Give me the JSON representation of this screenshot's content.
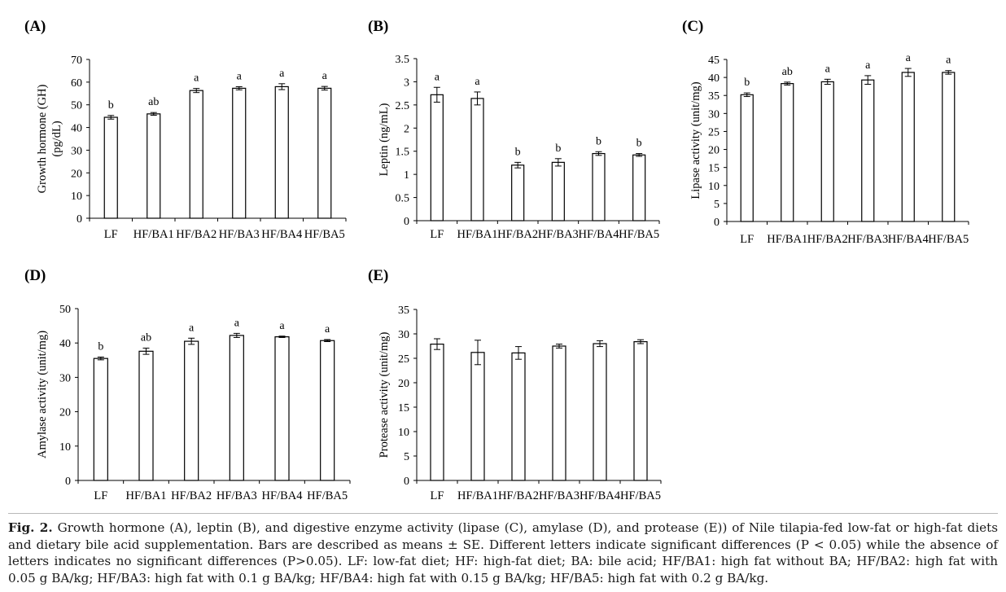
{
  "chart_data": [
    {
      "panel": "(A)",
      "type": "bar",
      "ylabel": "Growth hormone (GH) (pg/dL)",
      "ylabel_lines": [
        "Growth hormone (GH)",
        "(pg/dL)"
      ],
      "categories": [
        "LF",
        "HF/BA1",
        "HF/BA2",
        "HF/BA3",
        "HF/BA4",
        "HF/BA5"
      ],
      "values": [
        44.5,
        46,
        56.3,
        57.3,
        58,
        57.3
      ],
      "errors": [
        0.8,
        0.6,
        0.9,
        0.7,
        1.3,
        0.8
      ],
      "letters": [
        "b",
        "ab",
        "a",
        "a",
        "a",
        "a"
      ],
      "ylim": [
        0,
        70
      ],
      "yticks": [
        0,
        10,
        20,
        30,
        40,
        50,
        60,
        70
      ],
      "ytick_labels": [
        "0",
        "10",
        "20",
        "30",
        "40",
        "50",
        "60",
        "70"
      ],
      "grid": false
    },
    {
      "panel": "(B)",
      "type": "bar",
      "ylabel": "Leptin (ng/mL)",
      "ylabel_lines": [
        "Leptin (ng/mL)"
      ],
      "categories": [
        "LF",
        "HF/BA1",
        "HF/BA2",
        "HF/BA3",
        "HF/BA4",
        "HF/BA5"
      ],
      "values": [
        2.72,
        2.64,
        1.2,
        1.26,
        1.45,
        1.42
      ],
      "errors": [
        0.16,
        0.14,
        0.06,
        0.08,
        0.04,
        0.03
      ],
      "letters": [
        "a",
        "a",
        "b",
        "b",
        "b",
        "b"
      ],
      "ylim": [
        0,
        3.5
      ],
      "yticks": [
        0,
        0.5,
        1,
        1.5,
        2,
        2.5,
        3,
        3.5
      ],
      "ytick_labels": [
        "0",
        "0.5",
        "1",
        "1.5",
        "2",
        "2.5",
        "3",
        "3.5"
      ],
      "grid": false
    },
    {
      "panel": "(C)",
      "type": "bar",
      "ylabel": "Lipase activity (unit/mg)",
      "ylabel_lines": [
        "Lipase activity (unit/mg)"
      ],
      "categories": [
        "LF",
        "HF/BA1",
        "HF/BA2",
        "HF/BA3",
        "HF/BA4",
        "HF/BA5"
      ],
      "values": [
        35.2,
        38.3,
        38.8,
        39.3,
        41.4,
        41.4
      ],
      "errors": [
        0.5,
        0.4,
        0.7,
        1.2,
        1.1,
        0.5
      ],
      "letters": [
        "b",
        "ab",
        "a",
        "a",
        "a",
        "a"
      ],
      "ylim": [
        0,
        45
      ],
      "yticks": [
        0,
        5,
        10,
        15,
        20,
        25,
        30,
        35,
        40,
        45
      ],
      "ytick_labels": [
        "0",
        "5",
        "10",
        "15",
        "20",
        "25",
        "30",
        "35",
        "40",
        "45"
      ],
      "grid": false
    },
    {
      "panel": "(D)",
      "type": "bar",
      "ylabel": "Amylase activity (unit/mg)",
      "ylabel_lines": [
        "Amylase activity (unit/mg)"
      ],
      "categories": [
        "LF",
        "HF/BA1",
        "HF/BA2",
        "HF/BA3",
        "HF/BA4",
        "HF/BA5"
      ],
      "values": [
        35.5,
        37.6,
        40.5,
        42.2,
        41.8,
        40.7
      ],
      "errors": [
        0.4,
        0.9,
        0.9,
        0.6,
        0.2,
        0.3
      ],
      "letters": [
        "b",
        "ab",
        "a",
        "a",
        "a",
        "a"
      ],
      "ylim": [
        0,
        50
      ],
      "yticks": [
        0,
        10,
        20,
        30,
        40,
        50
      ],
      "ytick_labels": [
        "0",
        "10",
        "20",
        "30",
        "40",
        "50"
      ],
      "grid": false
    },
    {
      "panel": "(E)",
      "type": "bar",
      "ylabel": "Protease activity (unit/mg)",
      "ylabel_lines": [
        "Protease activity (unit/mg)"
      ],
      "categories": [
        "LF",
        "HF/BA1",
        "HF/BA2",
        "HF/BA3",
        "HF/BA4",
        "HF/BA5"
      ],
      "values": [
        27.9,
        26.2,
        26.1,
        27.5,
        28,
        28.4
      ],
      "errors": [
        1.1,
        2.5,
        1.3,
        0.4,
        0.6,
        0.4
      ],
      "letters": [
        "",
        "",
        "",
        "",
        "",
        ""
      ],
      "ylim": [
        0,
        35
      ],
      "yticks": [
        0,
        5,
        10,
        15,
        20,
        25,
        30,
        35
      ],
      "ytick_labels": [
        "0",
        "5",
        "10",
        "15",
        "20",
        "25",
        "30",
        "35"
      ],
      "grid": false
    }
  ],
  "caption": {
    "label": "Fig. 2.",
    "text": "Growth hormone (A), leptin (B), and digestive enzyme activity (lipase (C), amylase (D), and protease (E)) of Nile tilapia-fed low-fat or high-fat diets and dietary bile acid supplementation. Bars are described as means ± SE. Different letters indicate significant differences (P < 0.05) while the absence of letters indicates no significant differences (P>0.05). LF: low-fat diet; HF: high-fat diet; BA: bile acid; HF/BA1: high fat without BA; HF/BA2: high fat with 0.05 g BA/kg; HF/BA3: high fat with 0.1 g BA/kg; HF/BA4: high fat with 0.15 g BA/kg; HF/BA5: high fat with 0.2 g BA/kg."
  }
}
